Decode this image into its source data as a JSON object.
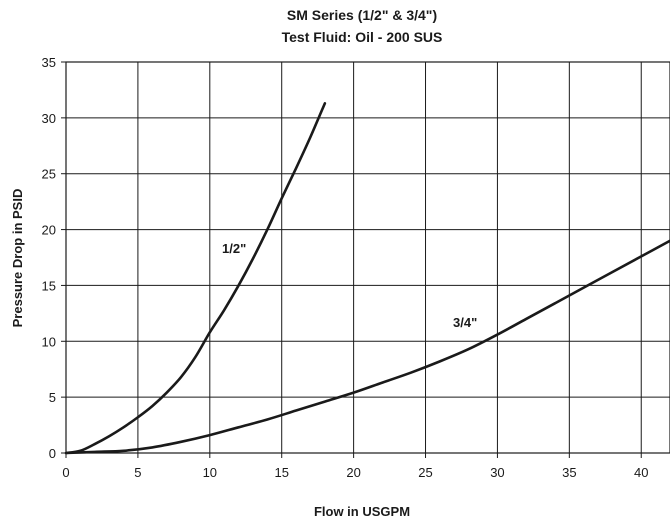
{
  "chart_data": {
    "type": "line",
    "title": "SM Series (1/2\" & 3/4\")",
    "subtitle": "Test Fluid: Oil - 200 SUS",
    "xlabel": "Flow in USGPM",
    "ylabel": "Pressure Drop in PSID",
    "xlim": [
      0,
      42
    ],
    "ylim": [
      0,
      35
    ],
    "xticks": [
      0,
      5,
      10,
      15,
      20,
      25,
      30,
      35,
      40
    ],
    "yticks": [
      0,
      5,
      10,
      15,
      20,
      25,
      30,
      35
    ],
    "grid": true,
    "series": [
      {
        "name": "1/2\"",
        "x": [
          0,
          1,
          2,
          3,
          4,
          5,
          6,
          7,
          8,
          9,
          10,
          11,
          12,
          13,
          14,
          15,
          16,
          17,
          18
        ],
        "y": [
          0,
          0.2,
          0.8,
          1.5,
          2.3,
          3.2,
          4.2,
          5.4,
          6.8,
          8.6,
          10.8,
          12.8,
          15.0,
          17.4,
          20.0,
          22.8,
          25.5,
          28.3,
          31.3
        ]
      },
      {
        "name": "3/4\"",
        "x": [
          0,
          2,
          4,
          6,
          8,
          10,
          12,
          14,
          16,
          18,
          20,
          22,
          24,
          26,
          28,
          30,
          32,
          34,
          36,
          38,
          40,
          42
        ],
        "y": [
          0,
          0.1,
          0.2,
          0.5,
          1.0,
          1.6,
          2.3,
          3.0,
          3.8,
          4.6,
          5.4,
          6.3,
          7.2,
          8.2,
          9.3,
          10.6,
          12.0,
          13.4,
          14.8,
          16.2,
          17.6,
          19.0
        ]
      }
    ]
  }
}
